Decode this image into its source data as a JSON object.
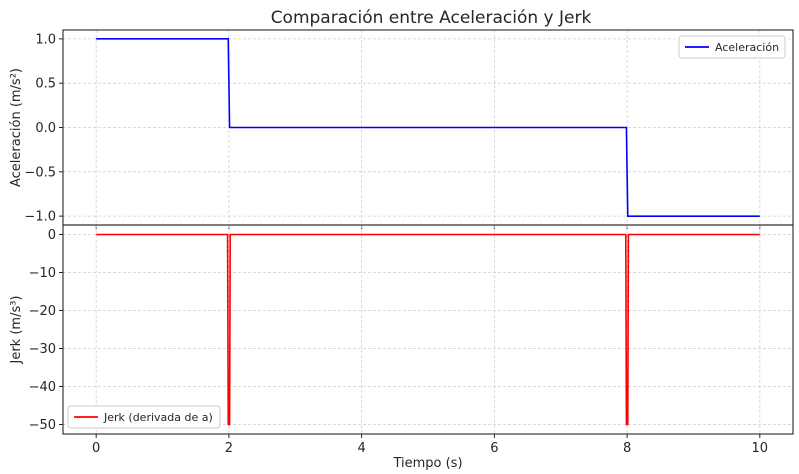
{
  "title": "Comparación entre Aceleración y Jerk",
  "chart_data": [
    {
      "type": "line",
      "ylabel": "Aceleración (m/s²)",
      "xlim": [
        -0.5,
        10.5
      ],
      "ylim": [
        -1.1,
        1.1
      ],
      "yticks": [
        1.0,
        0.5,
        0.0,
        -0.5,
        -1.0
      ],
      "ytick_labels": [
        "1.0",
        "0.5",
        "0.0",
        "−0.5",
        "−1.0"
      ],
      "grid": true,
      "legend_position": "top-right",
      "series": [
        {
          "name": "Aceleración",
          "color": "#0000ff",
          "x": [
            0,
            1.99,
            2.01,
            7.99,
            8.01,
            10
          ],
          "y": [
            1,
            1,
            0,
            0,
            -1,
            -1
          ]
        }
      ]
    },
    {
      "type": "line",
      "ylabel": "Jerk (m/s³)",
      "xlabel": "Tiempo (s)",
      "xlim": [
        -0.5,
        10.5
      ],
      "ylim": [
        -52.5,
        2.5
      ],
      "xticks": [
        0,
        2,
        4,
        6,
        8,
        10
      ],
      "xtick_labels": [
        "0",
        "2",
        "4",
        "6",
        "8",
        "10"
      ],
      "yticks": [
        0,
        -10,
        -20,
        -30,
        -40,
        -50
      ],
      "ytick_labels": [
        "0",
        "−10",
        "−20",
        "−30",
        "−40",
        "−50"
      ],
      "grid": true,
      "legend_position": "bottom-left",
      "series": [
        {
          "name": "Jerk (derivada de a)",
          "color": "#ff0000",
          "x": [
            0,
            1.98,
            1.99,
            2.01,
            2.02,
            7.98,
            7.99,
            8.01,
            8.02,
            10
          ],
          "y": [
            0,
            0,
            -50,
            -50,
            0,
            0,
            -50,
            -50,
            0,
            0
          ]
        }
      ]
    }
  ]
}
